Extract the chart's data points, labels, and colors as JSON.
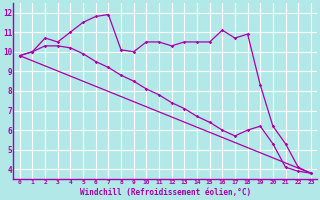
{
  "background_color": "#b2e8e8",
  "grid_color": "#ffffff",
  "line_color": "#aa00aa",
  "xlabel": "Windchill (Refroidissement éolien,°C)",
  "ylabel_ticks": [
    4,
    5,
    6,
    7,
    8,
    9,
    10,
    11,
    12
  ],
  "xlim": [
    -0.5,
    23.5
  ],
  "ylim": [
    3.5,
    12.5
  ],
  "series1_x": [
    0,
    1,
    2,
    3,
    4,
    5,
    6,
    7,
    8,
    9,
    10,
    11,
    12,
    13,
    14,
    15,
    16,
    17,
    18,
    19,
    20,
    21,
    22,
    23
  ],
  "series1_y": [
    9.8,
    10.0,
    10.7,
    10.5,
    11.0,
    11.5,
    11.8,
    11.9,
    10.1,
    10.0,
    10.5,
    10.5,
    10.3,
    10.5,
    10.5,
    10.5,
    11.1,
    10.7,
    10.9,
    8.3,
    6.2,
    5.3,
    4.1,
    3.8
  ],
  "series2_x": [
    0,
    1,
    2,
    3,
    4,
    5,
    6,
    7,
    8,
    9,
    10,
    11,
    12,
    13,
    14,
    15,
    16,
    17,
    18,
    19,
    20,
    21,
    22,
    23
  ],
  "series2_y": [
    9.8,
    10.0,
    10.3,
    10.3,
    10.2,
    9.9,
    9.5,
    9.2,
    8.8,
    8.5,
    8.1,
    7.8,
    7.4,
    7.1,
    6.7,
    6.4,
    6.0,
    5.7,
    6.0,
    6.2,
    5.3,
    4.1,
    3.9,
    3.8
  ],
  "series3_x": [
    0,
    23
  ],
  "series3_y": [
    9.8,
    3.8
  ],
  "xtick_labels": [
    "0",
    "1",
    "2",
    "3",
    "4",
    "5",
    "6",
    "7",
    "8",
    "9",
    "10",
    "11",
    "12",
    "13",
    "14",
    "15",
    "16",
    "17",
    "18",
    "19",
    "20",
    "21",
    "22",
    "23"
  ]
}
